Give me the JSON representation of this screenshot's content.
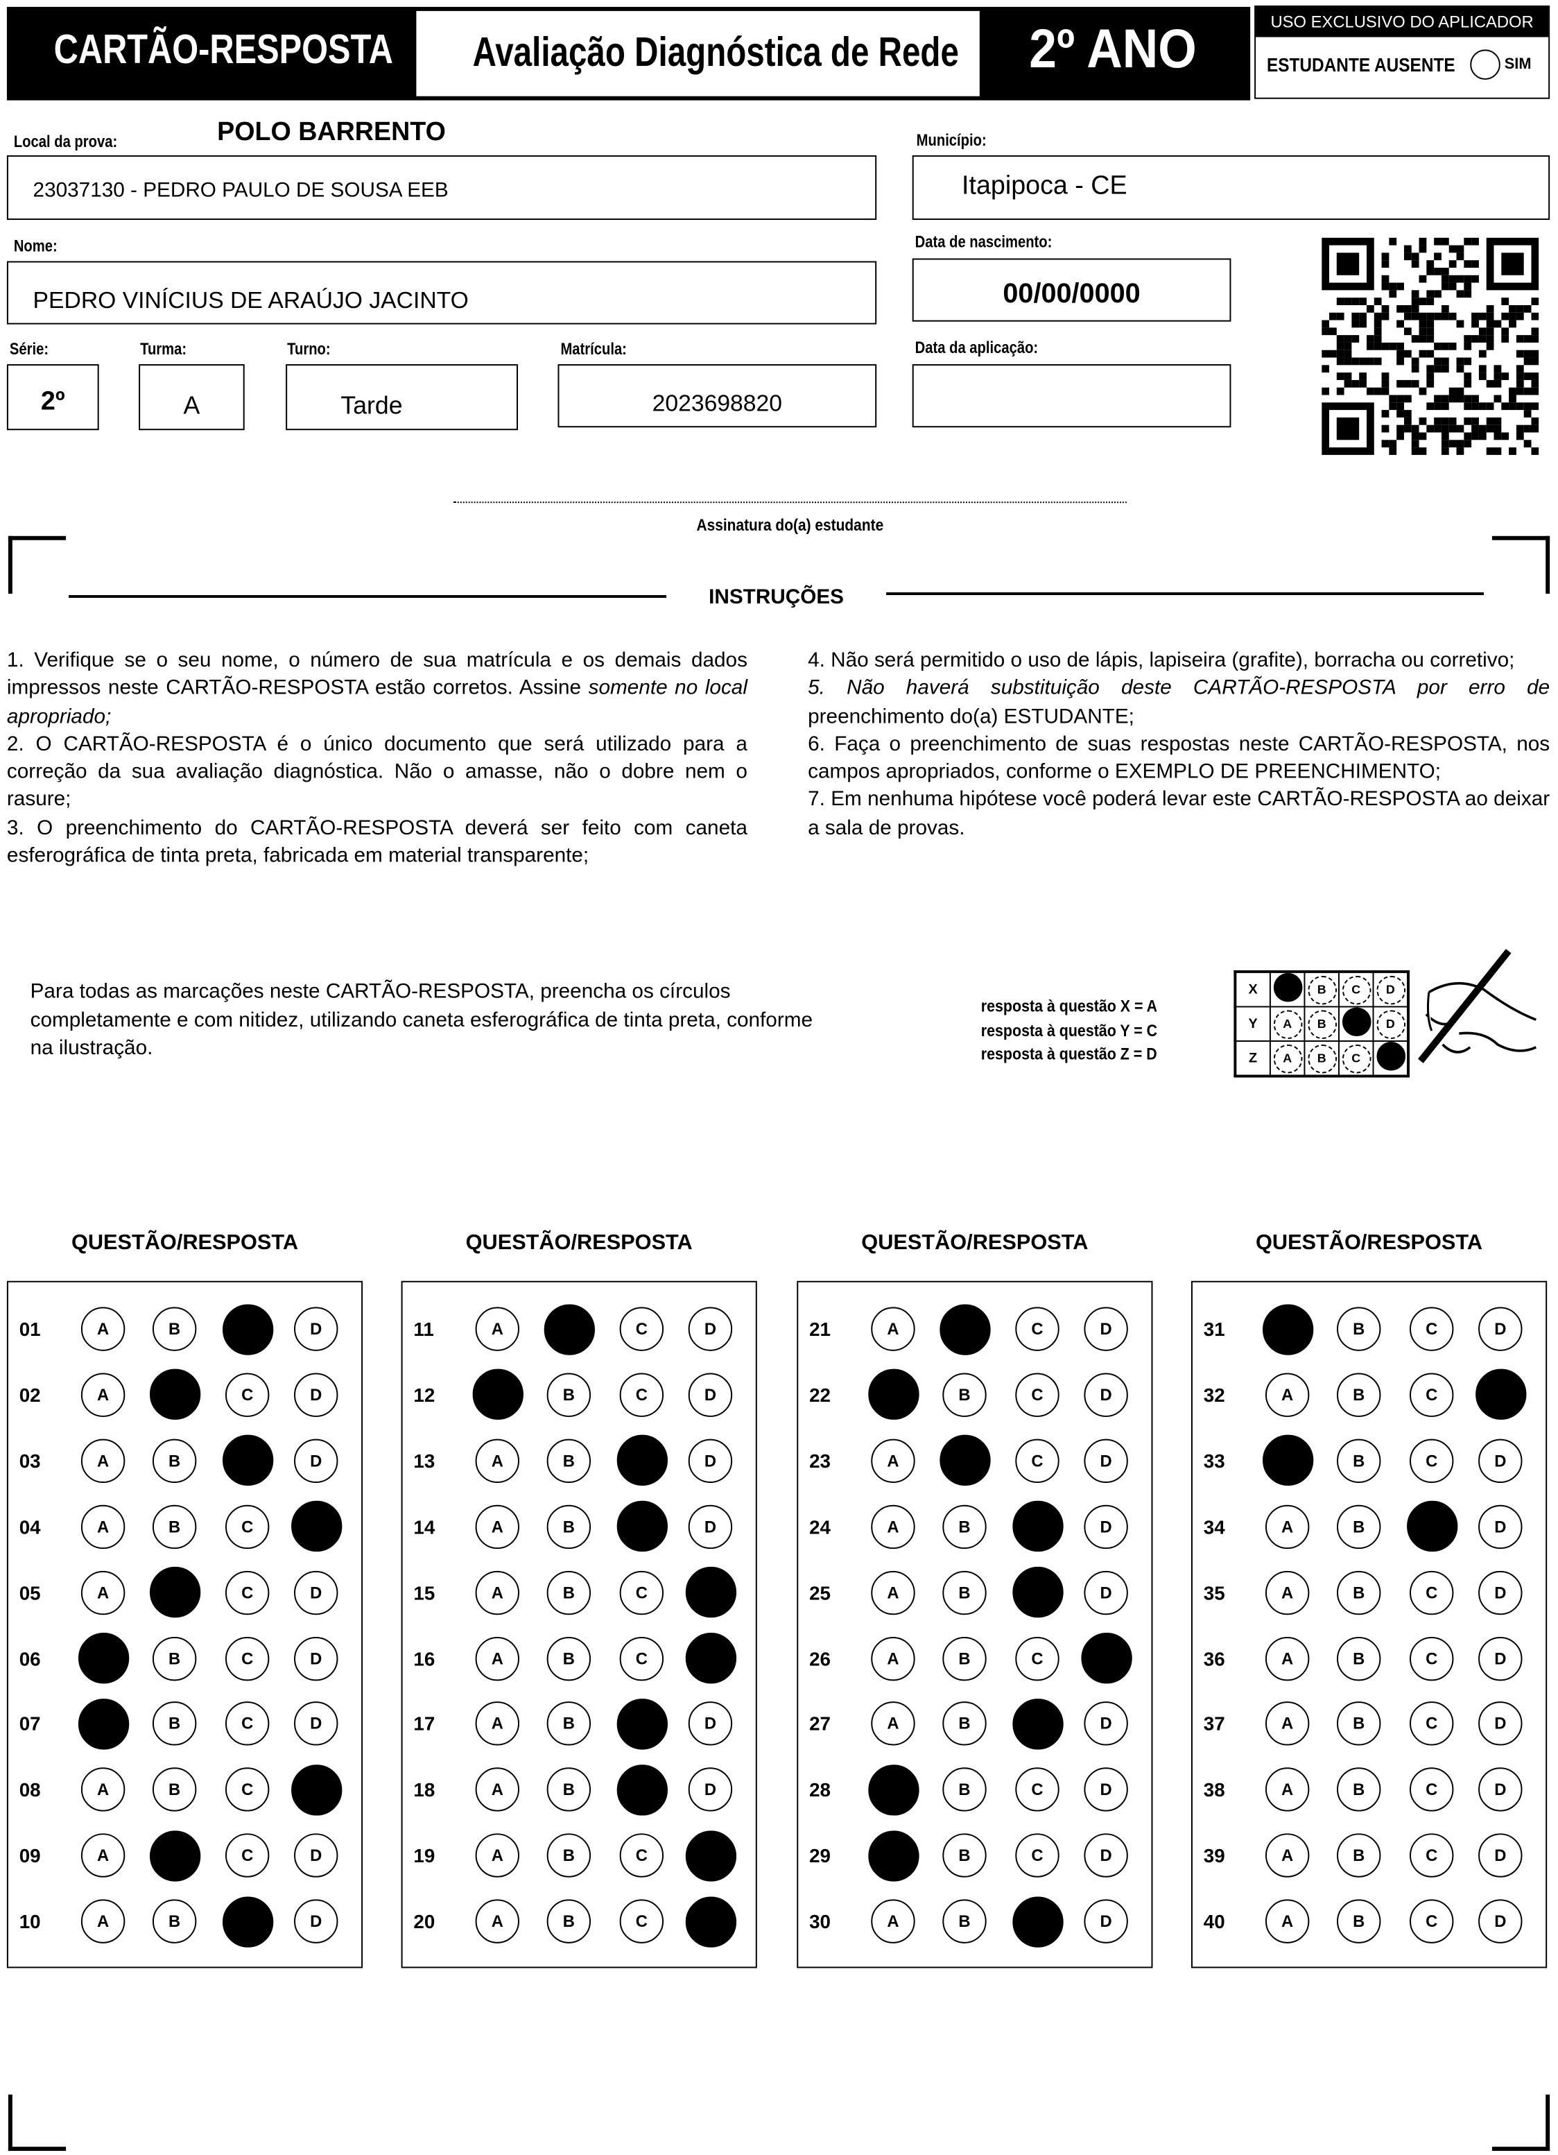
{
  "header": {
    "card_title": "CARTÃO-RESPOSTA",
    "exam_title": "Avaliação Diagnóstica de Rede",
    "grade_title": "2º ANO",
    "applicator": {
      "title": "USO EXCLUSIVO DO APLICADOR",
      "absent_label": "ESTUDANTE AUSENTE",
      "yes_label": "SIM",
      "absent_marked": false
    }
  },
  "form": {
    "local_label": "Local da prova:",
    "polo": "POLO BARRENTO",
    "school": "23037130 - PEDRO PAULO DE SOUSA EEB",
    "municipio_label": "Município:",
    "municipio": "Itapipoca - CE",
    "nome_label": "Nome:",
    "nome": "PEDRO VINÍCIUS DE ARAÚJO JACINTO",
    "nascimento_label": "Data de nascimento:",
    "nascimento": "00/00/0000",
    "serie_label": "Série:",
    "serie": "2º",
    "turma_label": "Turma:",
    "turma": "A",
    "turno_label": "Turno:",
    "turno": "Tarde",
    "matricula_label": "Matrícula:",
    "matricula": "2023698820",
    "aplicacao_label": "Data da aplicação:",
    "aplicacao": "",
    "signature_label": "Assinatura do(a) estudante",
    "qr_icon": "qr-code"
  },
  "instructions": {
    "title": "INSTRUÇÕES",
    "left": [
      {
        "text": "1. Verifique se o seu nome, o número de sua matrícula e os demais dados impressos neste CARTÃO-RESPOSTA estão corretos. Assine ",
        "italic": "somente no local apropriado;"
      },
      {
        "text": "2. O CARTÃO-RESPOSTA é o único documento que será utilizado para a correção da sua avaliação diagnóstica. Não o amasse, não o dobre nem o rasure;"
      },
      {
        "text": "3. O preenchimento do CARTÃO-RESPOSTA deverá ser feito com caneta esferográfica de tinta preta, fabricada em material transparente;"
      }
    ],
    "right": [
      {
        "text": "4. Não será permitido o uso de lápis, lapiseira (grafite), borracha ou corretivo;"
      },
      {
        "italic": "5. Não haverá substituição deste CARTÃO-RESPOSTA por erro de",
        "text": " preenchimento do(a) ESTUDANTE;"
      },
      {
        "text": "6. Faça o preenchimento de suas respostas neste CARTÃO-RESPOSTA, nos campos apropriados, conforme o EXEMPLO DE PREENCHIMENTO;"
      },
      {
        "text": "7. Em nenhuma hipótese você poderá levar este CARTÃO-RESPOSTA ao deixar a sala de provas."
      }
    ]
  },
  "example": {
    "text": "Para todas as marcações neste CARTÃO-RESPOSTA, preencha os círculos completamente e com nitidez, utilizando caneta esferográfica de tinta preta, conforme na ilustração.",
    "legend": [
      "resposta à questão X = A",
      "resposta à questão Y = C",
      "resposta à questão Z = D"
    ],
    "rows": [
      {
        "q": "X",
        "marked": "A"
      },
      {
        "q": "Y",
        "marked": "C"
      },
      {
        "q": "Z",
        "marked": "D"
      }
    ],
    "hand_icon": "hand-with-pen"
  },
  "answers": {
    "section_title": "QUESTÃO/RESPOSTA",
    "options": [
      "A",
      "B",
      "C",
      "D"
    ],
    "columns": [
      [
        {
          "q": "01",
          "m": "C"
        },
        {
          "q": "02",
          "m": "B"
        },
        {
          "q": "03",
          "m": "C"
        },
        {
          "q": "04",
          "m": "D"
        },
        {
          "q": "05",
          "m": "B"
        },
        {
          "q": "06",
          "m": "A"
        },
        {
          "q": "07",
          "m": "A"
        },
        {
          "q": "08",
          "m": "D"
        },
        {
          "q": "09",
          "m": "B"
        },
        {
          "q": "10",
          "m": "C"
        }
      ],
      [
        {
          "q": "11",
          "m": "B"
        },
        {
          "q": "12",
          "m": "A"
        },
        {
          "q": "13",
          "m": "C"
        },
        {
          "q": "14",
          "m": "C"
        },
        {
          "q": "15",
          "m": "D"
        },
        {
          "q": "16",
          "m": "D"
        },
        {
          "q": "17",
          "m": "C"
        },
        {
          "q": "18",
          "m": "C"
        },
        {
          "q": "19",
          "m": "D"
        },
        {
          "q": "20",
          "m": "D"
        }
      ],
      [
        {
          "q": "21",
          "m": "B"
        },
        {
          "q": "22",
          "m": "A"
        },
        {
          "q": "23",
          "m": "B"
        },
        {
          "q": "24",
          "m": "C"
        },
        {
          "q": "25",
          "m": "C"
        },
        {
          "q": "26",
          "m": "D"
        },
        {
          "q": "27",
          "m": "C"
        },
        {
          "q": "28",
          "m": "A"
        },
        {
          "q": "29",
          "m": "A"
        },
        {
          "q": "30",
          "m": "C"
        }
      ],
      [
        {
          "q": "31",
          "m": "A"
        },
        {
          "q": "32",
          "m": "D"
        },
        {
          "q": "33",
          "m": "A"
        },
        {
          "q": "34",
          "m": "C"
        },
        {
          "q": "35",
          "m": ""
        },
        {
          "q": "36",
          "m": ""
        },
        {
          "q": "37",
          "m": ""
        },
        {
          "q": "38",
          "m": ""
        },
        {
          "q": "39",
          "m": ""
        },
        {
          "q": "40",
          "m": ""
        }
      ]
    ]
  }
}
